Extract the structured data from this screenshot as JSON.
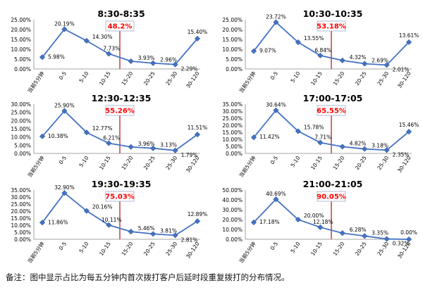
{
  "colors": {
    "line": "#4472c4",
    "marker": "#4472c4",
    "marker_stroke": "#2f5597",
    "marker_line": "#c0504d",
    "callout_text": "#ff0000",
    "callout_border": "#9aa8c6",
    "axis": "#888888",
    "text": "#000000"
  },
  "chart_data": [
    {
      "type": "line",
      "title": "8:30-8:35",
      "categories": [
        "当前5分钟",
        "0-5",
        "5-10",
        "10-15",
        "15-20",
        "20-25",
        "25-30",
        "30-120"
      ],
      "values": [
        5.98,
        20.19,
        14.3,
        7.73,
        3.93,
        2.96,
        2.29,
        15.4
      ],
      "data_labels": [
        "5.98%",
        "20.19%",
        "14.30%",
        "7.73%",
        "3.93%",
        "2.96%",
        "2.29%",
        "15.40%"
      ],
      "y_ticks": [
        "0.00%",
        "5.00%",
        "10.00%",
        "15.00%",
        "20.00%",
        "25.00%"
      ],
      "ylim": [
        0,
        25
      ],
      "callout": "48.2%",
      "marker_after_category": "10-15"
    },
    {
      "type": "line",
      "title": "10:30-10:35",
      "categories": [
        "当前5分钟",
        "0-5",
        "5-10",
        "10-15",
        "15-20",
        "20-25",
        "25-30",
        "30-120"
      ],
      "values": [
        9.07,
        23.72,
        13.55,
        6.84,
        4.32,
        2.69,
        2.01,
        13.61
      ],
      "data_labels": [
        "9.07%",
        "23.72%",
        "13.55%",
        "6.84%",
        "4.32%",
        "2.69%",
        "2.01%",
        "13.61%"
      ],
      "y_ticks": [
        "0.00%",
        "5.00%",
        "10.00%",
        "15.00%",
        "20.00%",
        "25.00%"
      ],
      "ylim": [
        0,
        25
      ],
      "callout": "53.18%",
      "marker_after_category": "10-15"
    },
    {
      "type": "line",
      "title": "12:30-12:35",
      "categories": [
        "当前5分钟",
        "0-5",
        "5-10",
        "10-15",
        "15-20",
        "20-25",
        "25-30",
        "30-120"
      ],
      "values": [
        10.38,
        25.9,
        12.77,
        6.21,
        3.96,
        3.13,
        1.79,
        11.51
      ],
      "data_labels": [
        "10.38%",
        "25.90%",
        "12.77%",
        "6.21%",
        "3.96%",
        "3.13%",
        "1.79%",
        "11.51%"
      ],
      "y_ticks": [
        "0.00%",
        "5.00%",
        "10.00%",
        "15.00%",
        "20.00%",
        "25.00%",
        "30.00%"
      ],
      "ylim": [
        0,
        30
      ],
      "callout": "55.26%",
      "marker_after_category": "10-15"
    },
    {
      "type": "line",
      "title": "17:00-17:05",
      "categories": [
        "当前5分钟",
        "0-5",
        "5-10",
        "10-15",
        "15-20",
        "20-25",
        "25-30",
        "30-120"
      ],
      "values": [
        11.42,
        30.64,
        15.78,
        7.71,
        4.82,
        3.18,
        2.35,
        15.46
      ],
      "data_labels": [
        "11.42%",
        "30.64%",
        "15.78%",
        "7.71%",
        "4.82%",
        "3.18%",
        "2.35%",
        "15.46%"
      ],
      "y_ticks": [
        "0.00%",
        "5.00%",
        "10.00%",
        "15.00%",
        "20.00%",
        "25.00%",
        "30.00%",
        "35.00%"
      ],
      "ylim": [
        0,
        35
      ],
      "callout": "65.55%",
      "marker_after_category": "10-15"
    },
    {
      "type": "line",
      "title": "19:30-19:35",
      "categories": [
        "当前5分钟",
        "0-5",
        "5-10",
        "10-15",
        "15-20",
        "20-25",
        "25-30",
        "30-120"
      ],
      "values": [
        11.86,
        32.9,
        20.16,
        10.11,
        5.46,
        3.81,
        2.81,
        12.89
      ],
      "data_labels": [
        "11.86%",
        "32.90%",
        "20.16%",
        "10.11%",
        "5.46%",
        "3.81%",
        "2.81%",
        "12.89%"
      ],
      "y_ticks": [
        "0.00%",
        "5.00%",
        "10.00%",
        "15.00%",
        "20.00%",
        "25.00%",
        "30.00%",
        "35.00%"
      ],
      "ylim": [
        0,
        35
      ],
      "callout": "75.03%",
      "marker_after_category": "10-15"
    },
    {
      "type": "line",
      "title": "21:00-21:05",
      "categories": [
        "当前5分钟",
        "0-5",
        "5-10",
        "10-15",
        "15-20",
        "20-25",
        "25-30",
        "30-120"
      ],
      "values": [
        17.18,
        40.69,
        20.0,
        12.18,
        6.28,
        3.35,
        0.32,
        0.0
      ],
      "data_labels": [
        "17.18%",
        "40.69%",
        "20.00%",
        "12.18%",
        "6.28%",
        "3.35%",
        "0.32%",
        "0.00%"
      ],
      "y_ticks": [
        "0.00%",
        "10.00%",
        "20.00%",
        "30.00%",
        "40.00%",
        "50.00%"
      ],
      "ylim": [
        0,
        50
      ],
      "callout": "90.05%",
      "marker_after_category": "10-15"
    }
  ],
  "footnote": "备注：图中显示占比为每五分钟内首次拨打客户后延时段重复拨打的分布情况。"
}
